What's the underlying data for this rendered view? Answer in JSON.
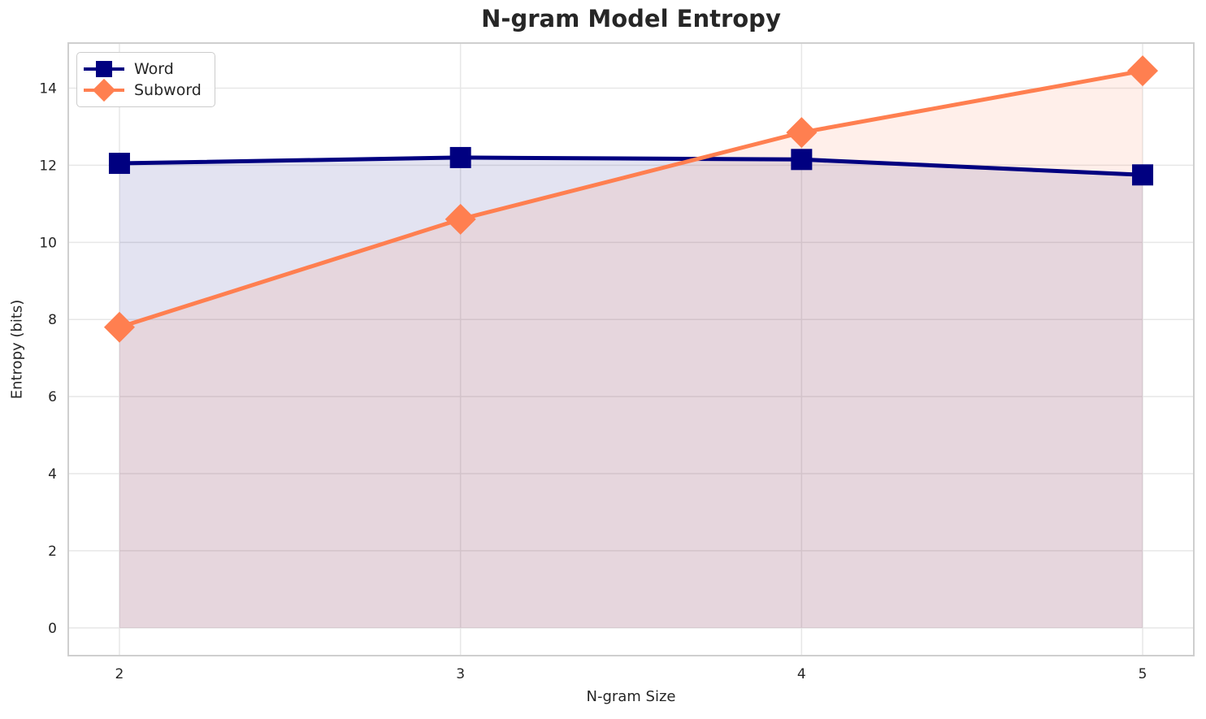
{
  "chart_data": {
    "type": "line",
    "title": "N-gram Model Entropy",
    "xlabel": "N-gram Size",
    "ylabel": "Entropy (bits)",
    "x": [
      2,
      3,
      4,
      5
    ],
    "series": [
      {
        "name": "Word",
        "color": "#000080",
        "fill_rgba": "rgba(0,0,128,0.11)",
        "marker": "square",
        "values": [
          12.05,
          12.2,
          12.15,
          11.75
        ]
      },
      {
        "name": "Subword",
        "color": "#FF7F50",
        "fill_rgba": "rgba(255,127,80,0.12)",
        "marker": "diamond",
        "values": [
          7.8,
          10.6,
          12.85,
          14.45
        ]
      }
    ],
    "xticks": [
      2,
      3,
      4,
      5
    ],
    "xtick_labels": [
      "2",
      "3",
      "4",
      "5"
    ],
    "yticks": [
      0,
      2,
      4,
      6,
      8,
      10,
      12,
      14
    ],
    "ytick_labels": [
      "0",
      "2",
      "4",
      "6",
      "8",
      "10",
      "12",
      "14"
    ],
    "xlim": [
      1.85,
      5.15
    ],
    "ylim": [
      -0.72,
      15.17
    ],
    "grid": true,
    "grid_color": "#e7e7e7",
    "spine_color": "#cfcfcf",
    "legend_position": "upper-left",
    "fill_to_zero": true
  }
}
